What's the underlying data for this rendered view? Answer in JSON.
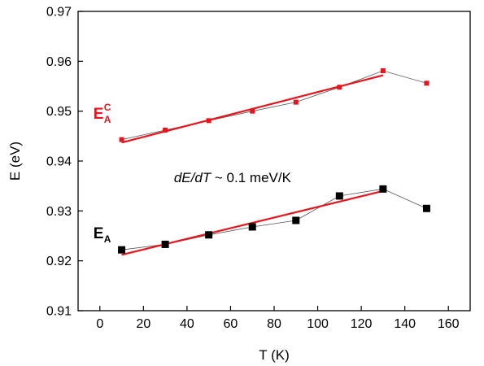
{
  "chart_data": {
    "type": "scatter",
    "xlabel": "T (K)",
    "ylabel": "E (eV)",
    "xlim": [
      -10,
      170
    ],
    "ylim": [
      0.91,
      0.97
    ],
    "xticks": [
      0,
      20,
      40,
      60,
      80,
      100,
      120,
      140,
      160
    ],
    "yticks": [
      0.91,
      0.92,
      0.93,
      0.94,
      0.95,
      0.96,
      0.97
    ],
    "annotation": {
      "italic_part": "dE/dT",
      "rest": " ~ 0.1 meV/K",
      "x": 34,
      "y": 0.9358
    },
    "series": [
      {
        "label_main": "E",
        "label_sub": "A",
        "label_sup": "C",
        "color": "#e8141c",
        "marker": "square-small",
        "label_pos": {
          "x": -3,
          "y": 0.9485
        },
        "points": [
          {
            "x": 10,
            "y": 0.9443
          },
          {
            "x": 30,
            "y": 0.9462
          },
          {
            "x": 50,
            "y": 0.9481
          },
          {
            "x": 70,
            "y": 0.95
          },
          {
            "x": 90,
            "y": 0.9518
          },
          {
            "x": 110,
            "y": 0.9548
          },
          {
            "x": 130,
            "y": 0.9581
          },
          {
            "x": 150,
            "y": 0.9556
          }
        ],
        "fit": {
          "x": [
            10,
            130
          ],
          "y": [
            0.9437,
            0.9572
          ]
        }
      },
      {
        "label_main": "E",
        "label_sub": "A",
        "label_sup": "",
        "color": "#000000",
        "marker": "square-large",
        "label_pos": {
          "x": -3,
          "y": 0.9245
        },
        "points": [
          {
            "x": 10,
            "y": 0.9222
          },
          {
            "x": 30,
            "y": 0.9233
          },
          {
            "x": 50,
            "y": 0.9252
          },
          {
            "x": 70,
            "y": 0.9268
          },
          {
            "x": 90,
            "y": 0.9281
          },
          {
            "x": 110,
            "y": 0.933
          },
          {
            "x": 130,
            "y": 0.9344
          },
          {
            "x": 150,
            "y": 0.9305
          }
        ],
        "fit": {
          "x": [
            10,
            130
          ],
          "y": [
            0.9212,
            0.934
          ]
        }
      }
    ]
  }
}
